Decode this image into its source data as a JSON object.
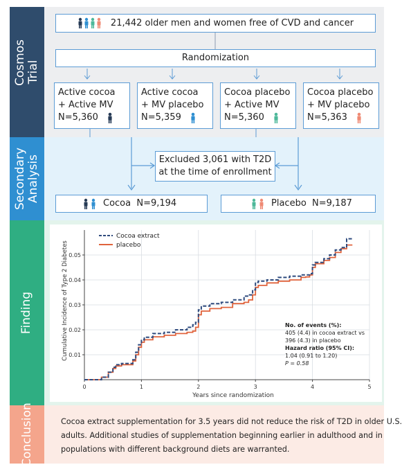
{
  "sections": {
    "trial": "Cosmos Trial",
    "secondary": "Secondary Analysis",
    "finding": "Finding",
    "conclusion": "Conclusion"
  },
  "trial": {
    "population": "21,442 older men and women free of CVD and cancer",
    "randomization": "Randomization",
    "arms": [
      {
        "line1": "Active cocoa",
        "line2": "+ Active MV",
        "n": "N=5,360",
        "icon": "person-navy-icon"
      },
      {
        "line1": "Active cocoa",
        "line2": "+ MV placebo",
        "n": "N=5,359",
        "icon": "person-blue-icon"
      },
      {
        "line1": "Cocoa placebo",
        "line2": "+ Active MV",
        "n": "N=5,360",
        "icon": "person-green-icon"
      },
      {
        "line1": "Cocoa placebo",
        "line2": "+ MV placebo",
        "n": "N=5,363",
        "icon": "person-salmon-icon"
      }
    ]
  },
  "secondary": {
    "excluded_line1": "Excluded 3,061 with T2D",
    "excluded_line2": "at the time of enrollment",
    "cocoa": "Cocoa  N=9,194",
    "placebo": "Placebo  N=9,187"
  },
  "chart_data": {
    "type": "line",
    "xlabel": "Years since randomization",
    "ylabel": "Cumulative Incidence of Type 2 Diabetes",
    "xlim": [
      0,
      5
    ],
    "ylim": [
      0,
      0.06
    ],
    "xticks": [
      0,
      1,
      2,
      3,
      4,
      5
    ],
    "yticks": [
      0.01,
      0.02,
      0.03,
      0.04,
      0.05
    ],
    "legend_position": "top-left",
    "series": [
      {
        "name": "Cocoa extract",
        "color": "#2e4a7d",
        "dash": "dashed",
        "x": [
          0,
          0.3,
          0.42,
          0.5,
          0.55,
          0.65,
          0.85,
          0.9,
          0.95,
          1.0,
          1.05,
          1.2,
          1.4,
          1.6,
          1.8,
          1.9,
          1.95,
          2.0,
          2.05,
          2.2,
          2.4,
          2.6,
          2.8,
          2.88,
          2.95,
          3.0,
          3.05,
          3.2,
          3.4,
          3.6,
          3.8,
          3.88,
          3.95,
          4.0,
          4.05,
          4.2,
          4.3,
          4.4,
          4.5,
          4.6,
          4.7
        ],
        "values": [
          0,
          0.001,
          0.003,
          0.005,
          0.006,
          0.0065,
          0.008,
          0.011,
          0.014,
          0.016,
          0.017,
          0.0185,
          0.019,
          0.02,
          0.021,
          0.022,
          0.023,
          0.028,
          0.0295,
          0.0305,
          0.031,
          0.032,
          0.0335,
          0.034,
          0.036,
          0.039,
          0.0395,
          0.04,
          0.041,
          0.0415,
          0.042,
          0.042,
          0.0425,
          0.046,
          0.047,
          0.0485,
          0.05,
          0.052,
          0.053,
          0.0565,
          0.057
        ]
      },
      {
        "name": "placebo",
        "color": "#e0633c",
        "dash": "solid",
        "x": [
          0,
          0.3,
          0.42,
          0.5,
          0.55,
          0.65,
          0.85,
          0.9,
          0.95,
          1.0,
          1.05,
          1.2,
          1.4,
          1.6,
          1.8,
          1.9,
          1.95,
          2.0,
          2.05,
          2.2,
          2.4,
          2.6,
          2.8,
          2.88,
          2.95,
          3.0,
          3.05,
          3.2,
          3.4,
          3.6,
          3.8,
          3.88,
          3.95,
          4.0,
          4.05,
          4.2,
          4.3,
          4.4,
          4.5,
          4.6,
          4.7
        ],
        "values": [
          0,
          0.001,
          0.003,
          0.0045,
          0.0055,
          0.006,
          0.0075,
          0.01,
          0.013,
          0.015,
          0.016,
          0.0172,
          0.0178,
          0.0185,
          0.019,
          0.0195,
          0.021,
          0.026,
          0.0275,
          0.0285,
          0.029,
          0.0305,
          0.031,
          0.032,
          0.034,
          0.037,
          0.0378,
          0.0388,
          0.0395,
          0.04,
          0.041,
          0.0412,
          0.042,
          0.045,
          0.0465,
          0.0478,
          0.049,
          0.051,
          0.0525,
          0.054,
          0.054
        ]
      }
    ],
    "annotation": {
      "events_label": "No. of events (%):",
      "events_line1": "405 (4.4) in cocoa extract vs",
      "events_line2": "396 (4.3) in placebo",
      "hr_label": "Hazard ratio (95% CI):",
      "hr_value": "1.04 (0.91 to 1.20)",
      "p_value": "P = 0.58"
    }
  },
  "conclusion": {
    "line1": "Cocoa extract supplementation for 3.5 years did not reduce the risk of T2D in older U.S.",
    "line2": "adults. Additional studies of supplementation beginning earlier in adulthood and in",
    "line3": "populations with different background diets are warranted."
  },
  "colors": {
    "trial_band": "#2f4c6c",
    "trial_bg": "#edeef0",
    "secondary_band": "#2f8fd1",
    "secondary_bg": "#e3f2fb",
    "finding_band": "#2fae82",
    "finding_bg": "#e3f4ec",
    "conclusion_band": "#f4a58c",
    "conclusion_bg": "#fcebe5",
    "box_border": "#5b9bd5",
    "arrow": "#5b9bd5"
  }
}
